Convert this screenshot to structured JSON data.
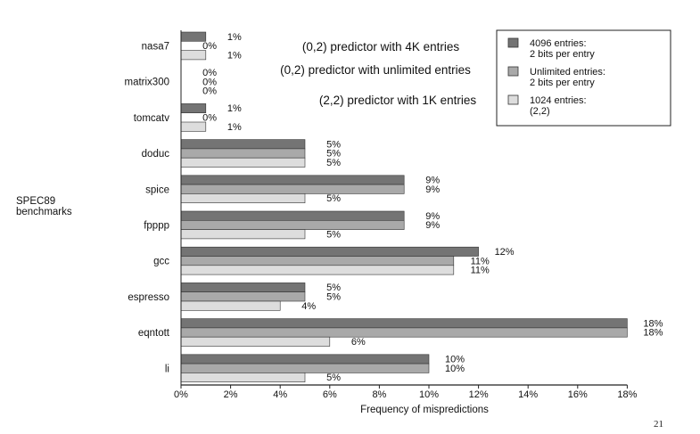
{
  "chart_data": {
    "type": "bar",
    "orientation": "horizontal",
    "categories": [
      "nasa7",
      "matrix300",
      "tomcatv",
      "doduc",
      "spice",
      "fpppp",
      "gcc",
      "espresso",
      "eqntott",
      "li"
    ],
    "series": [
      {
        "name": "4096 entries: 2 bits per entry",
        "legend_lines": [
          "4096 entries:",
          "2 bits per entry"
        ],
        "color": "#747474",
        "values": [
          1,
          0,
          1,
          5,
          9,
          9,
          12,
          5,
          18,
          10
        ]
      },
      {
        "name": "Unlimited entries: 2 bits per entry",
        "legend_lines": [
          "Unlimited entries:",
          "2 bits per entry"
        ],
        "color": "#a9a9a9",
        "values": [
          0,
          0,
          0,
          5,
          9,
          9,
          11,
          5,
          18,
          10
        ]
      },
      {
        "name": "1024 entries: (2,2)",
        "legend_lines": [
          "1024 entries:",
          "(2,2)"
        ],
        "color": "#dddddd",
        "values": [
          1,
          0,
          1,
          5,
          5,
          5,
          11,
          4,
          6,
          5
        ]
      }
    ],
    "xlabel": "Frequency of mispredictions",
    "ylabel_lines": [
      "SPEC89",
      "benchmarks"
    ],
    "xticks": [
      "0%",
      "2%",
      "4%",
      "6%",
      "8%",
      "10%",
      "12%",
      "14%",
      "16%",
      "18%"
    ],
    "xlim": [
      0,
      18
    ],
    "value_suffix": "%",
    "legend_position": "top-right",
    "grid": false
  },
  "annotations": [
    "(0,2) predictor with 4K entries",
    "(0,2) predictor with unlimited entries",
    "(2,2) predictor with 1K entries"
  ],
  "page_number": "21"
}
